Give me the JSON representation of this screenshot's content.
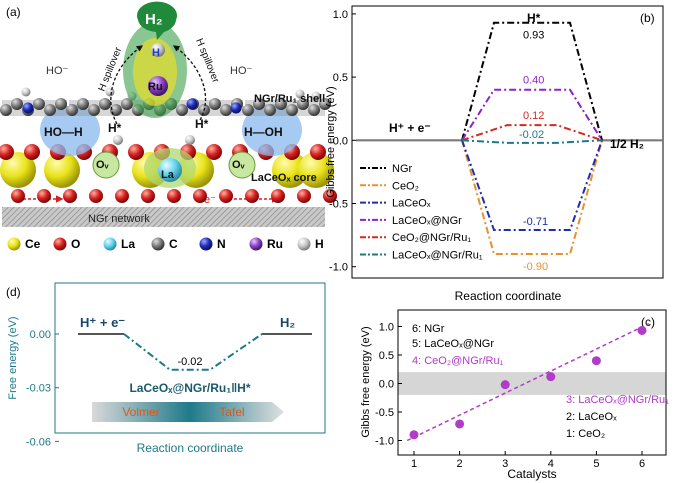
{
  "panel_a": {
    "label": "(a)",
    "h2": "H₂",
    "h_label": "H",
    "ru": "Ru",
    "spill_left": "H spillover",
    "spill_right": "H spillover",
    "hominus_left": "HO⁻",
    "hominus_right": "HO⁻",
    "shell": "NGr/Ru₁ shell",
    "hoh_left": "HO—H",
    "hoh_right": "H—OH",
    "hstar_left": "H*",
    "hstar_right": "H*",
    "ov_left": "Oᵥ",
    "ov_right": "Oᵥ",
    "la": "La",
    "core": "LaCeOₓ core",
    "e_left": "e⁻",
    "e_right": "e⁻",
    "network": "NGr network"
  },
  "legend_atoms": [
    {
      "label": "Ce",
      "color": "#e9e31a"
    },
    {
      "label": "O",
      "color": "#d42020"
    },
    {
      "label": "La",
      "color": "#63d4ee"
    },
    {
      "label": "C",
      "color": "#7a7a7a"
    },
    {
      "label": "N",
      "color": "#1d2bb8"
    },
    {
      "label": "Ru",
      "color": "#8a3fc7"
    },
    {
      "label": "H",
      "color": "#c8c8c8"
    }
  ],
  "panel_b": {
    "label": "(b)",
    "ylabel": "Gibbs free energy (eV)",
    "xlabel": "Reaction coordinate",
    "left_state": "H⁺ + e⁻",
    "mid_state": "H*",
    "right_state": "1/2 H₂",
    "y_ticks": [
      "1.0",
      "0.5",
      "0.0",
      "-0.5",
      "-1.0"
    ]
  },
  "panel_c": {
    "label": "(c)",
    "ylabel": "Gibbs free energy (eV)",
    "xlabel": "Catalysts",
    "notes": [
      {
        "text": "6: NGr",
        "color": "#000000"
      },
      {
        "text": "5: LaCeOₓ@NGr",
        "color": "#000000"
      },
      {
        "text": "4: CeO₂@NGr/Ru₁",
        "color": "#b03cc8"
      },
      {
        "text": "3: LaCeOₓ@NGr/Ru₁",
        "color": "#b03cc8"
      },
      {
        "text": "2: LaCeOₓ",
        "color": "#000000"
      },
      {
        "text": "1: CeO₂",
        "color": "#000000"
      }
    ],
    "y_ticks": [
      "1.0",
      "0.5",
      "0.0",
      "-0.5",
      "-1.0"
    ],
    "x_ticks": [
      "1",
      "2",
      "3",
      "4",
      "5",
      "6"
    ]
  },
  "panel_d": {
    "label": "(d)",
    "ylabel": "Free energy (eV)",
    "xlabel": "Reaction coordinate",
    "left_state": "H⁺ + e⁻",
    "right_state": "H₂",
    "value": "-0.02",
    "catalyst": "LaCeOₓ@NGr/Ru₁‖H*",
    "step1": "Volmer",
    "step2": "Tafel",
    "y_ticks": [
      "0.00",
      "-0.03",
      "-0.06"
    ]
  },
  "chart_data": [
    {
      "type": "line",
      "panel": "(b)",
      "ylabel": "Gibbs free energy (eV)",
      "xlabel": "Reaction coordinate",
      "categories": [
        "H⁺ + e⁻",
        "H*",
        "1/2 H₂"
      ],
      "ylim": [
        -1.2,
        1.1
      ],
      "legend_position": "bottom-left",
      "series": [
        {
          "name": "NGr",
          "values": [
            0,
            0.93,
            0
          ],
          "label": "0.93",
          "color": "#000000",
          "dash": "dashdot"
        },
        {
          "name": "CeO₂",
          "values": [
            0,
            -0.9,
            0
          ],
          "label": "-0.90",
          "color": "#e8902a",
          "dash": "dashdot"
        },
        {
          "name": "LaCeOₓ",
          "values": [
            0,
            -0.71,
            0
          ],
          "label": "-0.71",
          "color": "#1f2cb0",
          "dash": "dashdot"
        },
        {
          "name": "LaCeOₓ@NGr",
          "values": [
            0,
            0.4,
            0
          ],
          "label": "0.40",
          "color": "#8b24c9",
          "dash": "dashdot"
        },
        {
          "name": "CeO₂@NGr/Ru₁",
          "values": [
            0,
            0.12,
            0
          ],
          "label": "0.12",
          "color": "#d42a20",
          "dash": "dashdot"
        },
        {
          "name": "LaCeOₓ@NGr/Ru₁",
          "values": [
            0,
            -0.02,
            0
          ],
          "label": "-0.02",
          "color": "#1a7a8a",
          "dash": "dashdot"
        }
      ]
    },
    {
      "type": "scatter",
      "panel": "(c)",
      "ylabel": "Gibbs free energy (eV)",
      "xlabel": "Catalysts",
      "x": [
        1,
        2,
        3,
        4,
        5,
        6
      ],
      "y": [
        -0.9,
        -0.71,
        -0.02,
        0.12,
        0.4,
        0.93
      ],
      "xlim": [
        0.6,
        6.4
      ],
      "ylim": [
        -1.2,
        1.25
      ],
      "band": [
        -0.2,
        0.2
      ],
      "color": "#b03cc8",
      "trend": "dashed"
    },
    {
      "type": "line",
      "panel": "(d)",
      "ylabel": "Free energy (eV)",
      "xlabel": "Reaction coordinate",
      "categories": [
        "H⁺ + e⁻",
        "H*",
        "H₂"
      ],
      "values": [
        0,
        -0.02,
        0
      ],
      "ylim": [
        -0.065,
        0.012
      ],
      "color": "#1a7a8a"
    }
  ]
}
